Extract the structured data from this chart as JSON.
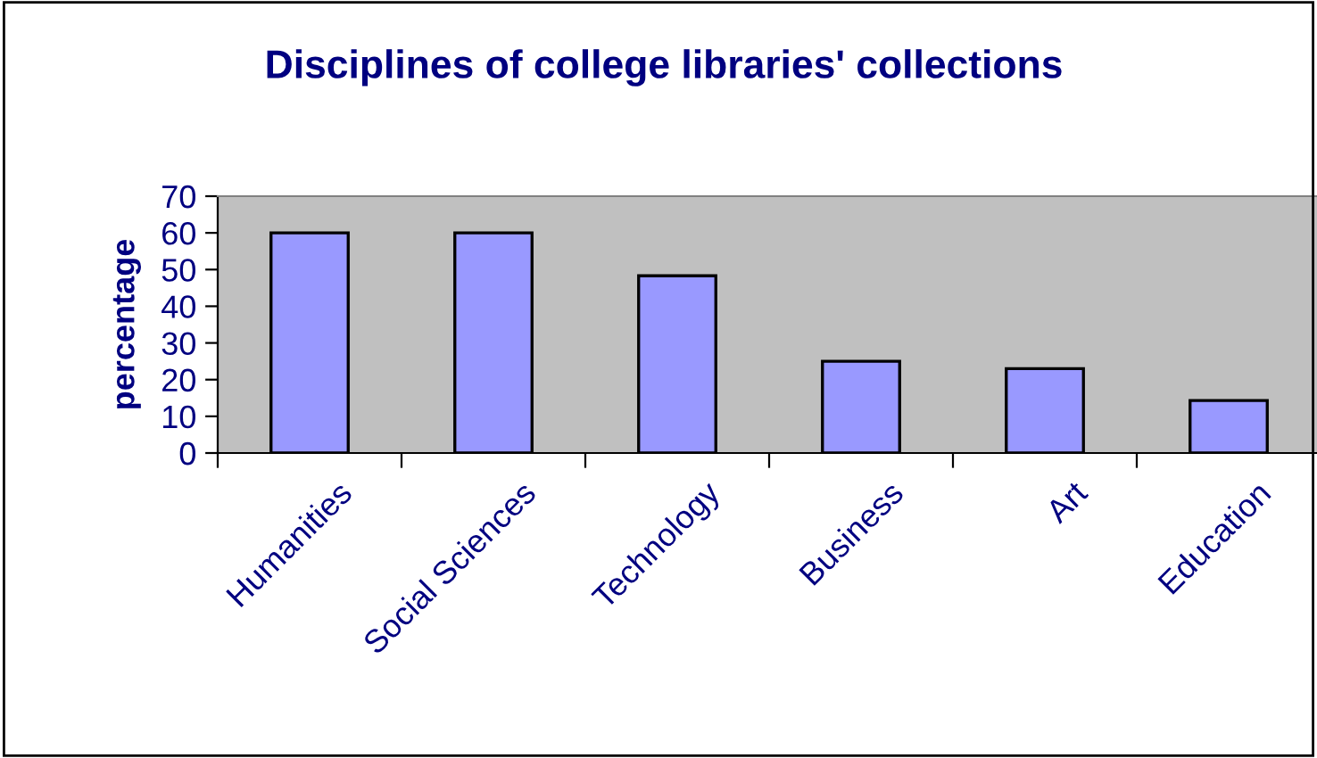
{
  "chart_data": {
    "type": "bar",
    "title": "Disciplines of college libraries' collections",
    "ylabel": "percentage",
    "categories": [
      "Humanities",
      "Social Sciences",
      "Technology",
      "Business",
      "Art",
      "Education"
    ],
    "values": [
      60,
      60,
      48.3,
      25,
      23,
      14.3
    ],
    "color": "#9999ff",
    "ylim": [
      0,
      70
    ],
    "yticks": [
      0,
      10,
      20,
      30,
      40,
      50,
      60,
      70
    ],
    "grid": false,
    "legend": false
  }
}
